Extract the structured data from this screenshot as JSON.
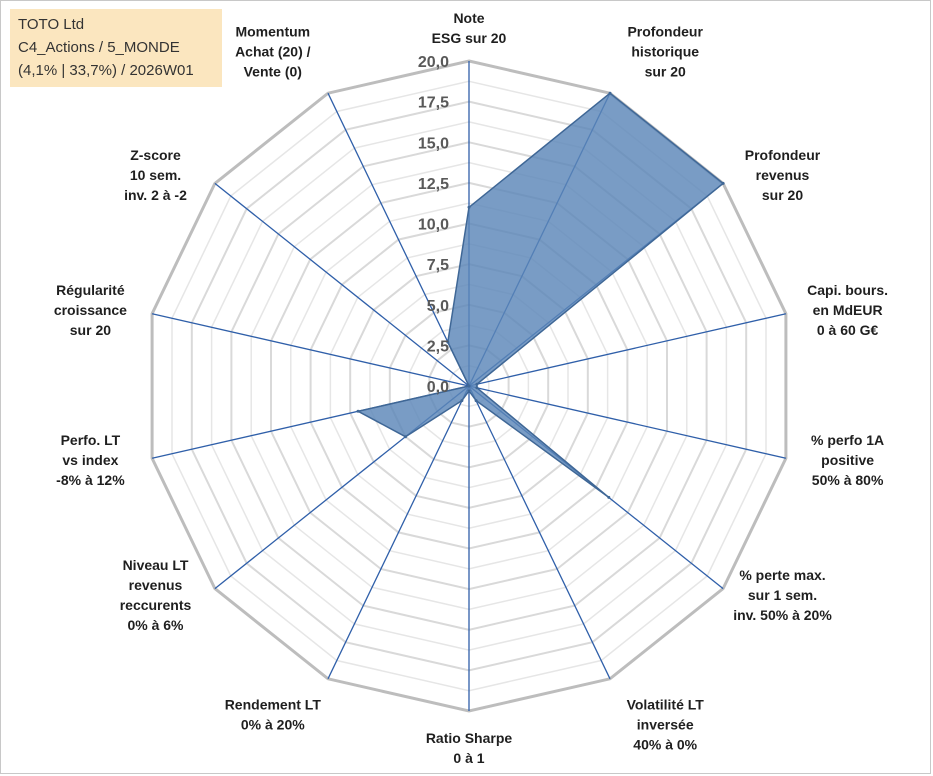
{
  "info": {
    "line1": "TOTO Ltd",
    "line2": "C4_Actions / 5_MONDE",
    "line3": "(4,1% | 33,7%) / 2026W01"
  },
  "colors": {
    "series_fill": "#5b86b8",
    "series_stroke": "#3f6796",
    "axis_spoke": "#2f5fa9",
    "grid_outer": "#bdbdbd",
    "grid_inner": "#d9d9d9",
    "info_bg": "#fbe6bf"
  },
  "chart_data": {
    "type": "radar",
    "rlim": [
      0,
      20
    ],
    "ticks": [
      "0,0",
      "2,5",
      "5,0",
      "7,5",
      "10,0",
      "12,5",
      "15,0",
      "17,5",
      "20,0"
    ],
    "tick_values": [
      0,
      2.5,
      5,
      7.5,
      10,
      12.5,
      15,
      17.5,
      20
    ],
    "grid": true,
    "categories": [
      [
        "Note",
        "ESG sur 20"
      ],
      [
        "Profondeur",
        "historique",
        "sur 20"
      ],
      [
        "Profondeur",
        "revenus",
        "sur 20"
      ],
      [
        "Capi. bours.",
        "en MdEUR",
        "0 à 60 G€"
      ],
      [
        "% perfo 1A",
        "positive",
        "50% à 80%"
      ],
      [
        "% perte max.",
        "sur 1 sem.",
        "inv. 50% à 20%"
      ],
      [
        "Volatilité LT",
        "inversée",
        "40% à 0%"
      ],
      [
        "Ratio Sharpe",
        "0 à 1"
      ],
      [
        "Rendement LT",
        "0% à 20%"
      ],
      [
        "Niveau LT",
        "revenus",
        "reccurents",
        "0% à 6%"
      ],
      [
        "Perfo. LT",
        "vs index",
        "-8% à 12%"
      ],
      [
        "Régularité",
        "croissance",
        "sur 20"
      ],
      [
        "Z-score",
        "10 sem.",
        "inv. 2 à -2"
      ],
      [
        "Momentum",
        "Achat (20) /",
        "Vente (0)"
      ]
    ],
    "values": [
      11,
      20,
      20,
      0.5,
      0.5,
      11,
      1,
      0.3,
      1,
      5,
      7,
      0,
      0,
      3
    ]
  }
}
